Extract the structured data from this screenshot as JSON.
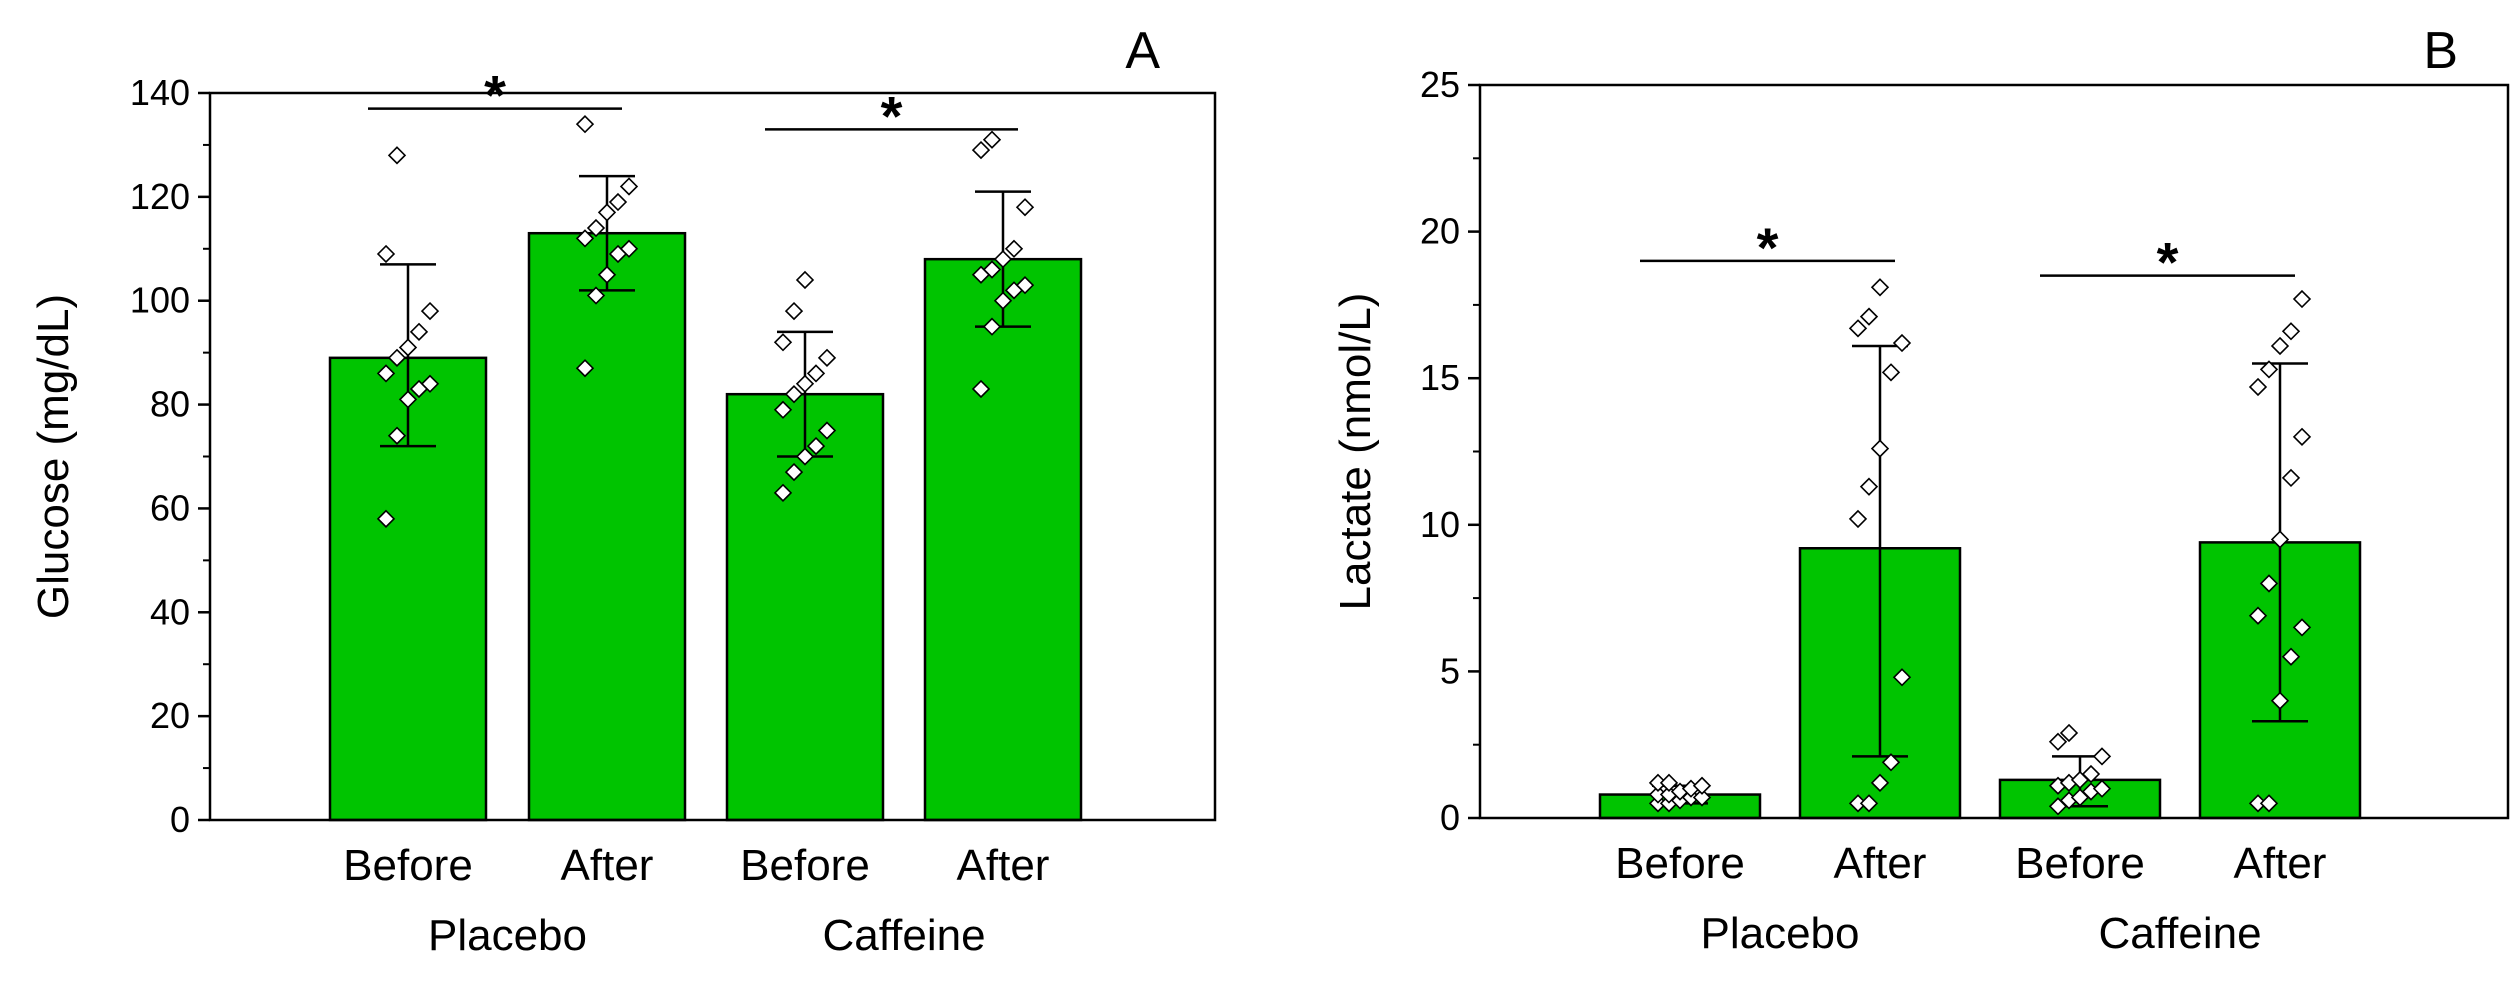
{
  "colors": {
    "bar_fill": "#00c400",
    "bar_stroke": "#000000",
    "point_fill": "#ffffff",
    "point_stroke": "#000000",
    "axis": "#000000"
  },
  "chart_data": [
    {
      "panel_label": "A",
      "type": "bar",
      "ylabel": "Glucose (mg/dL)",
      "ylim": [
        0,
        140
      ],
      "yticks": [
        "0",
        "20",
        "40",
        "60",
        "80",
        "100",
        "120",
        "140"
      ],
      "categories": [
        "Before",
        "After",
        "Before",
        "After"
      ],
      "groups": [
        "Placebo",
        "Caffeine"
      ],
      "values": [
        89,
        113,
        82,
        108
      ],
      "error_bars": [
        [
          72,
          107
        ],
        [
          102,
          124
        ],
        [
          70,
          94
        ],
        [
          95,
          121
        ]
      ],
      "points": [
        [
          58,
          74,
          81,
          83,
          84,
          86,
          89,
          91,
          94,
          98,
          109,
          128
        ],
        [
          87,
          101,
          105,
          109,
          110,
          112,
          114,
          117,
          119,
          122,
          134
        ],
        [
          63,
          67,
          70,
          72,
          75,
          79,
          82,
          84,
          86,
          89,
          92,
          98,
          104
        ],
        [
          83,
          95,
          100,
          102,
          103,
          105,
          106,
          108,
          110,
          118,
          129,
          131
        ]
      ],
      "significance": [
        {
          "from": 0,
          "to": 1,
          "label": "*",
          "y": 137
        },
        {
          "from": 2,
          "to": 3,
          "label": "*",
          "y": 133
        }
      ]
    },
    {
      "panel_label": "B",
      "type": "bar",
      "ylabel": "Lactate (nmol/L)",
      "ylim": [
        0,
        25
      ],
      "yticks": [
        "0",
        "5",
        "10",
        "15",
        "20",
        "25"
      ],
      "categories": [
        "Before",
        "After",
        "Before",
        "After"
      ],
      "groups": [
        "Placebo",
        "Caffeine"
      ],
      "values": [
        0.8,
        9.2,
        1.3,
        9.4
      ],
      "error_bars": [
        [
          0.5,
          1.1
        ],
        [
          2.1,
          16.1
        ],
        [
          0.4,
          2.1
        ],
        [
          3.3,
          15.5
        ]
      ],
      "points": [
        [
          0.5,
          0.5,
          0.6,
          0.7,
          0.7,
          0.8,
          0.8,
          0.9,
          1.0,
          1.1,
          1.2,
          1.2
        ],
        [
          0.5,
          0.5,
          1.2,
          1.9,
          4.8,
          10.2,
          11.3,
          12.6,
          15.2,
          16.2,
          16.7,
          17.1,
          18.1
        ],
        [
          0.4,
          0.6,
          0.7,
          0.9,
          1.0,
          1.1,
          1.2,
          1.3,
          1.5,
          2.1,
          2.6,
          2.9
        ],
        [
          0.5,
          0.5,
          4.0,
          5.5,
          6.5,
          6.9,
          8.0,
          9.5,
          11.6,
          13.0,
          14.7,
          15.3,
          16.1,
          16.6,
          17.7
        ]
      ],
      "significance": [
        {
          "from": 0,
          "to": 1,
          "label": "*",
          "y": 19
        },
        {
          "from": 2,
          "to": 3,
          "label": "*",
          "y": 18.5
        }
      ]
    }
  ]
}
